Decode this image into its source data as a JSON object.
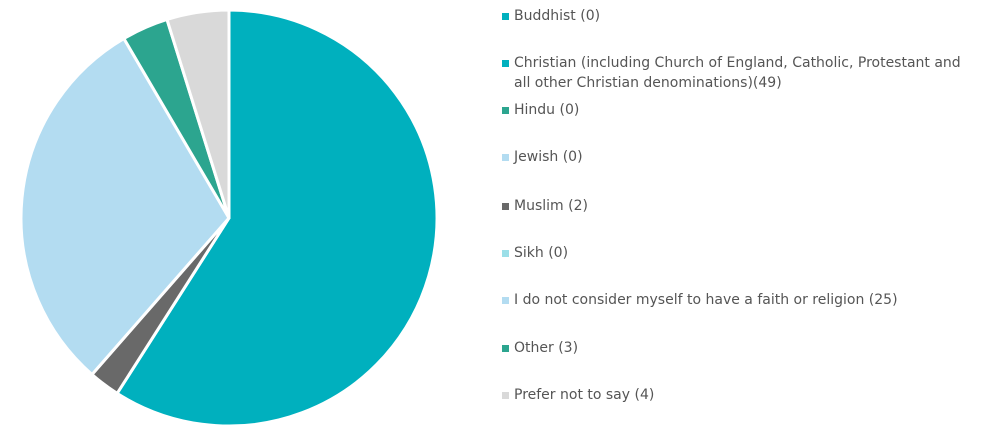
{
  "chart_data": {
    "type": "pie",
    "categories": [
      "Buddhist",
      "Christian (including Church of England, Catholic, Protestant and all other Christian denominations)",
      "Hindu",
      "Jewish",
      "Muslim",
      "Sikh",
      "I do not consider myself to have a faith or religion",
      "Other",
      "Prefer not to say"
    ],
    "values": [
      0,
      49,
      0,
      0,
      2,
      0,
      25,
      3,
      4
    ],
    "colors": [
      "#00b0be",
      "#00b0be",
      "#2ca58f",
      "#b3dcf1",
      "#696969",
      "#9bdfe8",
      "#b3dcf1",
      "#2ca58f",
      "#d9d9d9"
    ],
    "legend_position": "right",
    "legend": [
      {
        "label": "Buddhist (0)"
      },
      {
        "label": "Christian (including Church of England, Catholic, Protestant and all other Christian denominations)(49)"
      },
      {
        "label": "Hindu (0)"
      },
      {
        "label": "Jewish (0)"
      },
      {
        "label": "Muslim (2)"
      },
      {
        "label": "Sikh (0)"
      },
      {
        "label": "I do not consider myself to have a faith or religion (25)"
      },
      {
        "label": "Other (3)"
      },
      {
        "label": "Prefer not to say (4)"
      }
    ]
  }
}
